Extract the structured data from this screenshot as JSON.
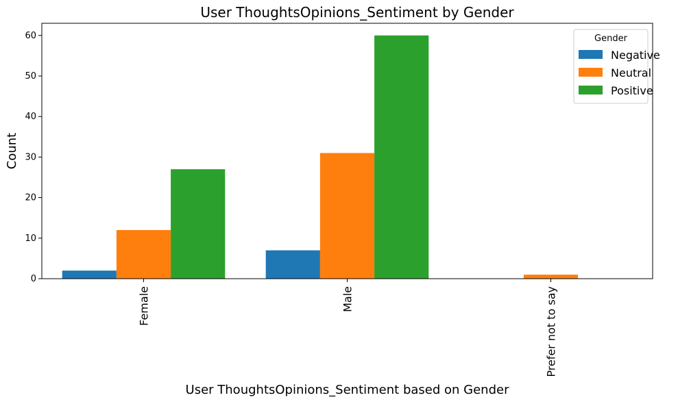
{
  "chart_data": {
    "type": "bar",
    "title": "User ThoughtsOpinions_Sentiment by Gender",
    "xlabel": "User ThoughtsOpinions_Sentiment based on Gender",
    "ylabel": "Count",
    "categories": [
      "Female",
      "Male",
      "Prefer not to say"
    ],
    "series": [
      {
        "name": "Negative",
        "color": "#1f77b4",
        "values": [
          2,
          7,
          0
        ]
      },
      {
        "name": "Neutral",
        "color": "#ff7f0e",
        "values": [
          12,
          31,
          1
        ]
      },
      {
        "name": "Positive",
        "color": "#2ca02c",
        "values": [
          27,
          60,
          0
        ]
      }
    ],
    "ylim": [
      0,
      63
    ],
    "yticks": [
      0,
      10,
      20,
      30,
      40,
      50,
      60
    ],
    "legend": {
      "title": "Gender",
      "placement": "top-right"
    },
    "grid": false,
    "xtick_rotation": "vertical"
  }
}
